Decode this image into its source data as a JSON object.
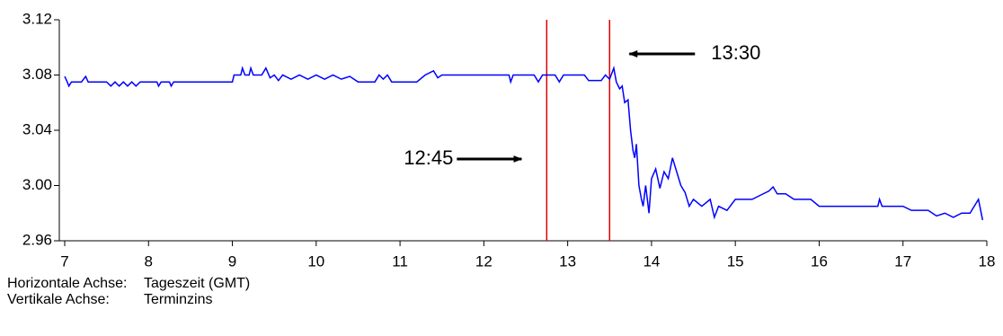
{
  "chart_data": {
    "type": "line",
    "x": [
      7.0,
      7.03,
      7.05,
      7.08,
      7.2,
      7.25,
      7.28,
      7.5,
      7.55,
      7.6,
      7.65,
      7.7,
      7.75,
      7.8,
      7.85,
      7.9,
      8.1,
      8.12,
      8.15,
      8.25,
      8.27,
      8.3,
      9.0,
      9.02,
      9.1,
      9.12,
      9.15,
      9.2,
      9.22,
      9.25,
      9.35,
      9.4,
      9.45,
      9.5,
      9.55,
      9.6,
      9.7,
      9.8,
      9.9,
      10.0,
      10.1,
      10.2,
      10.3,
      10.4,
      10.5,
      10.7,
      10.75,
      10.8,
      10.85,
      10.9,
      11.2,
      11.3,
      11.4,
      11.45,
      11.5,
      12.2,
      12.3,
      12.32,
      12.35,
      12.6,
      12.65,
      12.7,
      12.85,
      12.9,
      12.95,
      13.2,
      13.25,
      13.4,
      13.45,
      13.5,
      13.55,
      13.58,
      13.62,
      13.65,
      13.68,
      13.72,
      13.75,
      13.78,
      13.8,
      13.82,
      13.85,
      13.88,
      13.9,
      13.93,
      13.97,
      14.0,
      14.05,
      14.1,
      14.15,
      14.2,
      14.25,
      14.3,
      14.35,
      14.4,
      14.45,
      14.5,
      14.6,
      14.7,
      14.75,
      14.8,
      14.9,
      15.0,
      15.2,
      15.3,
      15.4,
      15.45,
      15.5,
      15.6,
      15.7,
      15.9,
      16.0,
      16.5,
      16.7,
      16.72,
      16.75,
      17.0,
      17.1,
      17.3,
      17.4,
      17.5,
      17.6,
      17.7,
      17.8,
      17.9,
      17.95
    ],
    "series": [
      {
        "color": "#0000ff",
        "values": [
          3.079,
          3.075,
          3.072,
          3.075,
          3.075,
          3.079,
          3.075,
          3.075,
          3.072,
          3.075,
          3.072,
          3.075,
          3.072,
          3.075,
          3.072,
          3.075,
          3.075,
          3.072,
          3.075,
          3.075,
          3.072,
          3.075,
          3.075,
          3.08,
          3.08,
          3.085,
          3.08,
          3.08,
          3.085,
          3.08,
          3.08,
          3.085,
          3.078,
          3.08,
          3.076,
          3.08,
          3.077,
          3.08,
          3.077,
          3.08,
          3.077,
          3.08,
          3.077,
          3.079,
          3.075,
          3.075,
          3.08,
          3.077,
          3.08,
          3.075,
          3.075,
          3.08,
          3.083,
          3.078,
          3.08,
          3.08,
          3.08,
          3.075,
          3.08,
          3.08,
          3.075,
          3.08,
          3.08,
          3.075,
          3.08,
          3.08,
          3.076,
          3.076,
          3.08,
          3.077,
          3.085,
          3.075,
          3.07,
          3.072,
          3.06,
          3.062,
          3.04,
          3.025,
          3.02,
          3.03,
          3.0,
          2.99,
          2.985,
          3.0,
          2.98,
          3.005,
          3.012,
          2.998,
          3.01,
          3.005,
          3.02,
          3.01,
          3.0,
          2.995,
          2.985,
          2.99,
          2.985,
          2.99,
          2.977,
          2.985,
          2.982,
          2.99,
          2.99,
          2.993,
          2.996,
          2.999,
          2.994,
          2.994,
          2.99,
          2.99,
          2.985,
          2.985,
          2.985,
          2.99,
          2.985,
          2.985,
          2.982,
          2.982,
          2.978,
          2.98,
          2.977,
          2.98,
          2.98,
          2.99,
          2.975
        ]
      }
    ],
    "xlim": [
      7,
      18
    ],
    "xticks": [
      7,
      8,
      9,
      10,
      11,
      12,
      13,
      14,
      15,
      16,
      17,
      18
    ],
    "ylim": [
      2.96,
      3.12
    ],
    "yticks": [
      3.12,
      3.08,
      3.04,
      {
        "value": 3,
        "label": "3.00"
      },
      2.96
    ],
    "vlines": [
      {
        "value": 12.75,
        "label": "12:45"
      },
      {
        "value": 13.5,
        "label": "13:30"
      }
    ],
    "vline_color": "#e00000",
    "captions": [
      [
        "Horizontale Achse:",
        "Tageszeit (GMT)"
      ],
      [
        "Vertikale Achse:",
        "Terminzins"
      ]
    ]
  }
}
